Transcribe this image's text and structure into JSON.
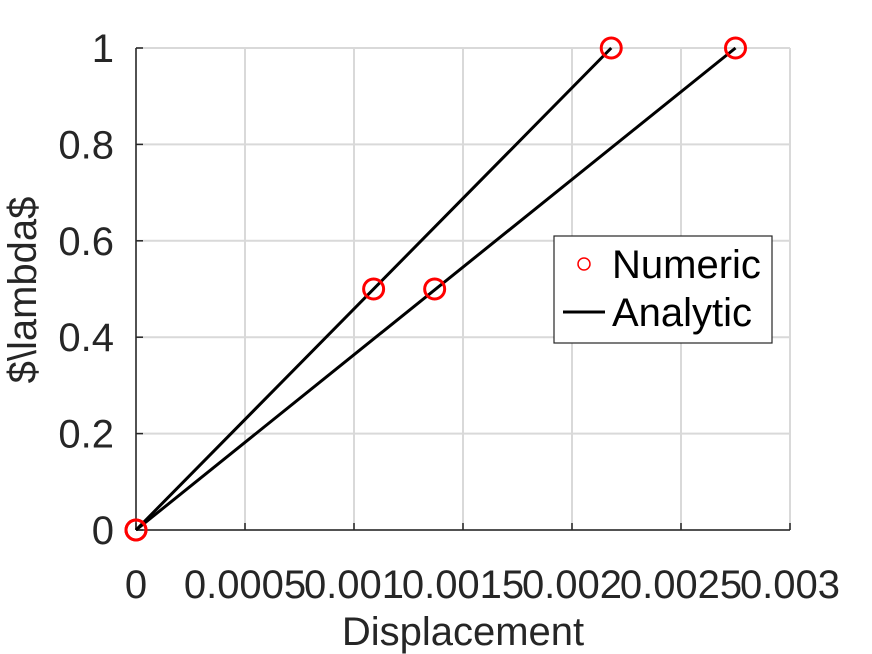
{
  "chart_data": {
    "type": "line",
    "xlabel": "Displacement",
    "ylabel": "$\\lambda$",
    "xlim": [
      0,
      0.003
    ],
    "ylim": [
      0,
      1
    ],
    "xticks": [
      "0",
      "0.0005",
      "0.001",
      "0.0015",
      "0.002",
      "0.0025",
      "0.003"
    ],
    "yticks": [
      "0",
      "0.2",
      "0.4",
      "0.6",
      "0.8",
      "1"
    ],
    "grid": true,
    "legend_position": "right",
    "series": [
      {
        "name": "Numeric",
        "style": "marker",
        "marker": "circle",
        "color": "#ff0000",
        "points": [
          [
            0,
            0
          ],
          [
            0.00109,
            0.5
          ],
          [
            0.00218,
            1.0
          ],
          [
            0,
            0
          ],
          [
            0.00137,
            0.5
          ],
          [
            0.00275,
            1.0
          ]
        ]
      },
      {
        "name": "Analytic",
        "style": "line",
        "color": "#000000",
        "lines": [
          [
            [
              0,
              0
            ],
            [
              0.00218,
              1.0
            ]
          ],
          [
            [
              0,
              0
            ],
            [
              0.00275,
              1.0
            ]
          ]
        ]
      }
    ]
  }
}
